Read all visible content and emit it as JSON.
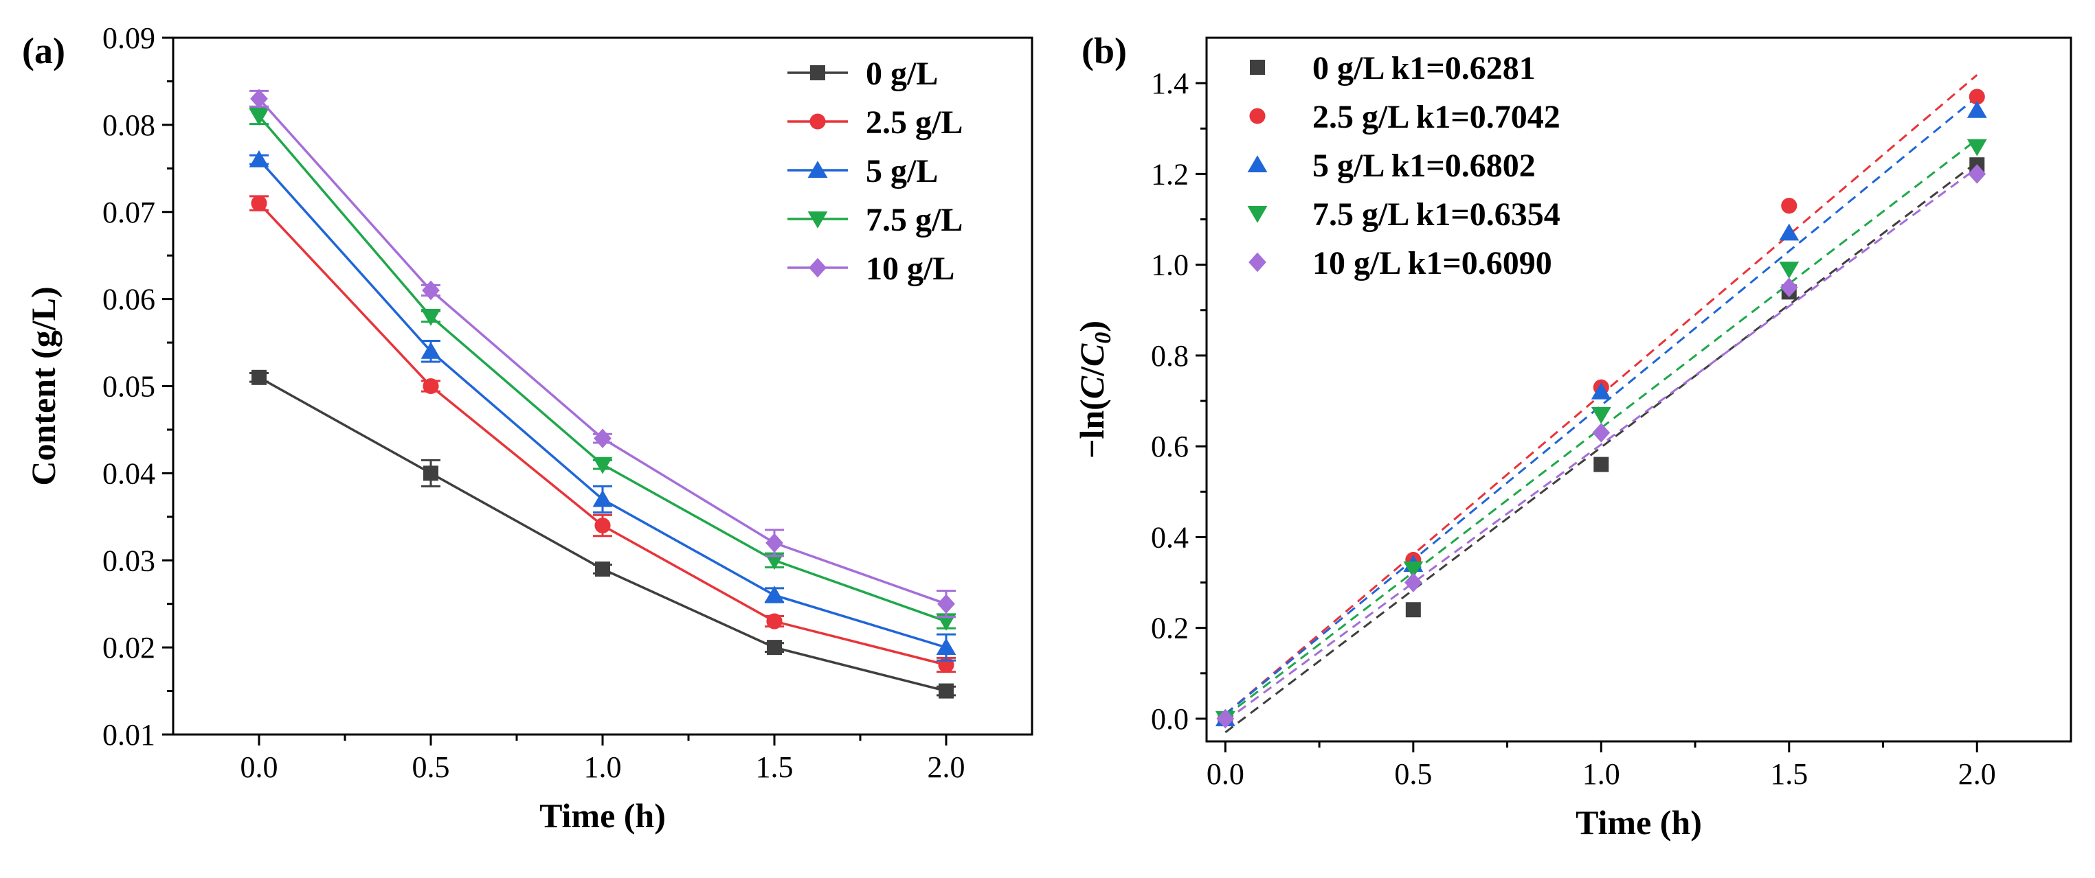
{
  "colors": {
    "0 g/L": "#3f3f3f",
    "2.5 g/L": "#e8343a",
    "5 g/L": "#1f66d8",
    "7.5 g/L": "#1fa84a",
    "10 g/L": "#a56ed9"
  },
  "chart_data": [
    {
      "panel_label": "(a)",
      "type": "line",
      "xlabel": "Time (h)",
      "ylabel": "Content (g/L)",
      "xlim": [
        -0.25,
        2.25
      ],
      "ylim": [
        0.01,
        0.09
      ],
      "xticks": [
        "0.0",
        "0.5",
        "1.0",
        "1.5",
        "2.0"
      ],
      "yticks": [
        "0.01",
        "0.02",
        "0.03",
        "0.04",
        "0.05",
        "0.06",
        "0.07",
        "0.08",
        "0.09"
      ],
      "x": [
        0,
        0.5,
        1.0,
        1.5,
        2.0
      ],
      "grid": false,
      "legend_position": "top-right",
      "series": [
        {
          "name": "0 g/L",
          "marker": "square",
          "values": [
            0.051,
            0.04,
            0.029,
            0.02,
            0.015
          ],
          "errors": [
            0.0005,
            0.0015,
            0.0005,
            0.0005,
            0.0005
          ]
        },
        {
          "name": "2.5 g/L",
          "marker": "circle",
          "values": [
            0.071,
            0.05,
            0.034,
            0.023,
            0.018
          ],
          "errors": [
            0.0008,
            0.0006,
            0.0012,
            0.0006,
            0.0008
          ]
        },
        {
          "name": "5 g/L",
          "marker": "triangle-up",
          "values": [
            0.076,
            0.054,
            0.037,
            0.026,
            0.02
          ],
          "errors": [
            0.0005,
            0.0012,
            0.0015,
            0.0008,
            0.0015
          ]
        },
        {
          "name": "7.5 g/L",
          "marker": "triangle-down",
          "values": [
            0.081,
            0.058,
            0.041,
            0.03,
            0.023
          ],
          "errors": [
            0.0009,
            0.0006,
            0.0005,
            0.0008,
            0.0008
          ]
        },
        {
          "name": "10 g/L",
          "marker": "diamond",
          "values": [
            0.083,
            0.061,
            0.044,
            0.032,
            0.025
          ],
          "errors": [
            0.0009,
            0.0006,
            0.0005,
            0.0015,
            0.0015
          ]
        }
      ]
    },
    {
      "panel_label": "(b)",
      "type": "scatter",
      "xlabel": "Time (h)",
      "ylabel_prefix": "−ln(",
      "ylabel_italic_c": "C",
      "ylabel_slash": "/",
      "ylabel_italic_c0": "C",
      "ylabel_sub": "0",
      "ylabel_suffix": ")",
      "xlim": [
        -0.05,
        2.25
      ],
      "ylim": [
        -0.05,
        1.5
      ],
      "xticks": [
        "0.0",
        "0.5",
        "1.0",
        "1.5",
        "2.0"
      ],
      "yticks": [
        "0.0",
        "0.2",
        "0.4",
        "0.6",
        "0.8",
        "1.0",
        "1.2",
        "1.4"
      ],
      "x": [
        0,
        0.5,
        1.0,
        1.5,
        2.0
      ],
      "grid": false,
      "legend_position": "top-left",
      "fit_line_style": "dashed",
      "series": [
        {
          "name": "0 g/L",
          "label": "0 g/L k1=0.6281",
          "marker": "square",
          "values": [
            0.0,
            0.24,
            0.56,
            0.94,
            1.22
          ],
          "fit": [
            -0.03,
            1.226
          ]
        },
        {
          "name": "2.5 g/L",
          "label": "2.5 g/L k1=0.7042",
          "marker": "circle",
          "values": [
            0.0,
            0.35,
            0.73,
            1.13,
            1.37
          ],
          "fit": [
            0.01,
            1.418
          ]
        },
        {
          "name": "5 g/L",
          "label": "5 g/L k1=0.6802",
          "marker": "triangle-up",
          "values": [
            0.0,
            0.34,
            0.72,
            1.07,
            1.34
          ],
          "fit": [
            0.01,
            1.37
          ]
        },
        {
          "name": "7.5 g/L",
          "label": "7.5 g/L k1=0.6354",
          "marker": "triangle-down",
          "values": [
            0.0,
            0.33,
            0.67,
            0.99,
            1.26
          ],
          "fit": [
            0.005,
            1.276
          ]
        },
        {
          "name": "10 g/L",
          "label": "10 g/L k1=0.6090",
          "marker": "diamond",
          "values": [
            0.0,
            0.3,
            0.63,
            0.95,
            1.2
          ],
          "fit": [
            -0.005,
            1.213
          ]
        }
      ]
    }
  ]
}
